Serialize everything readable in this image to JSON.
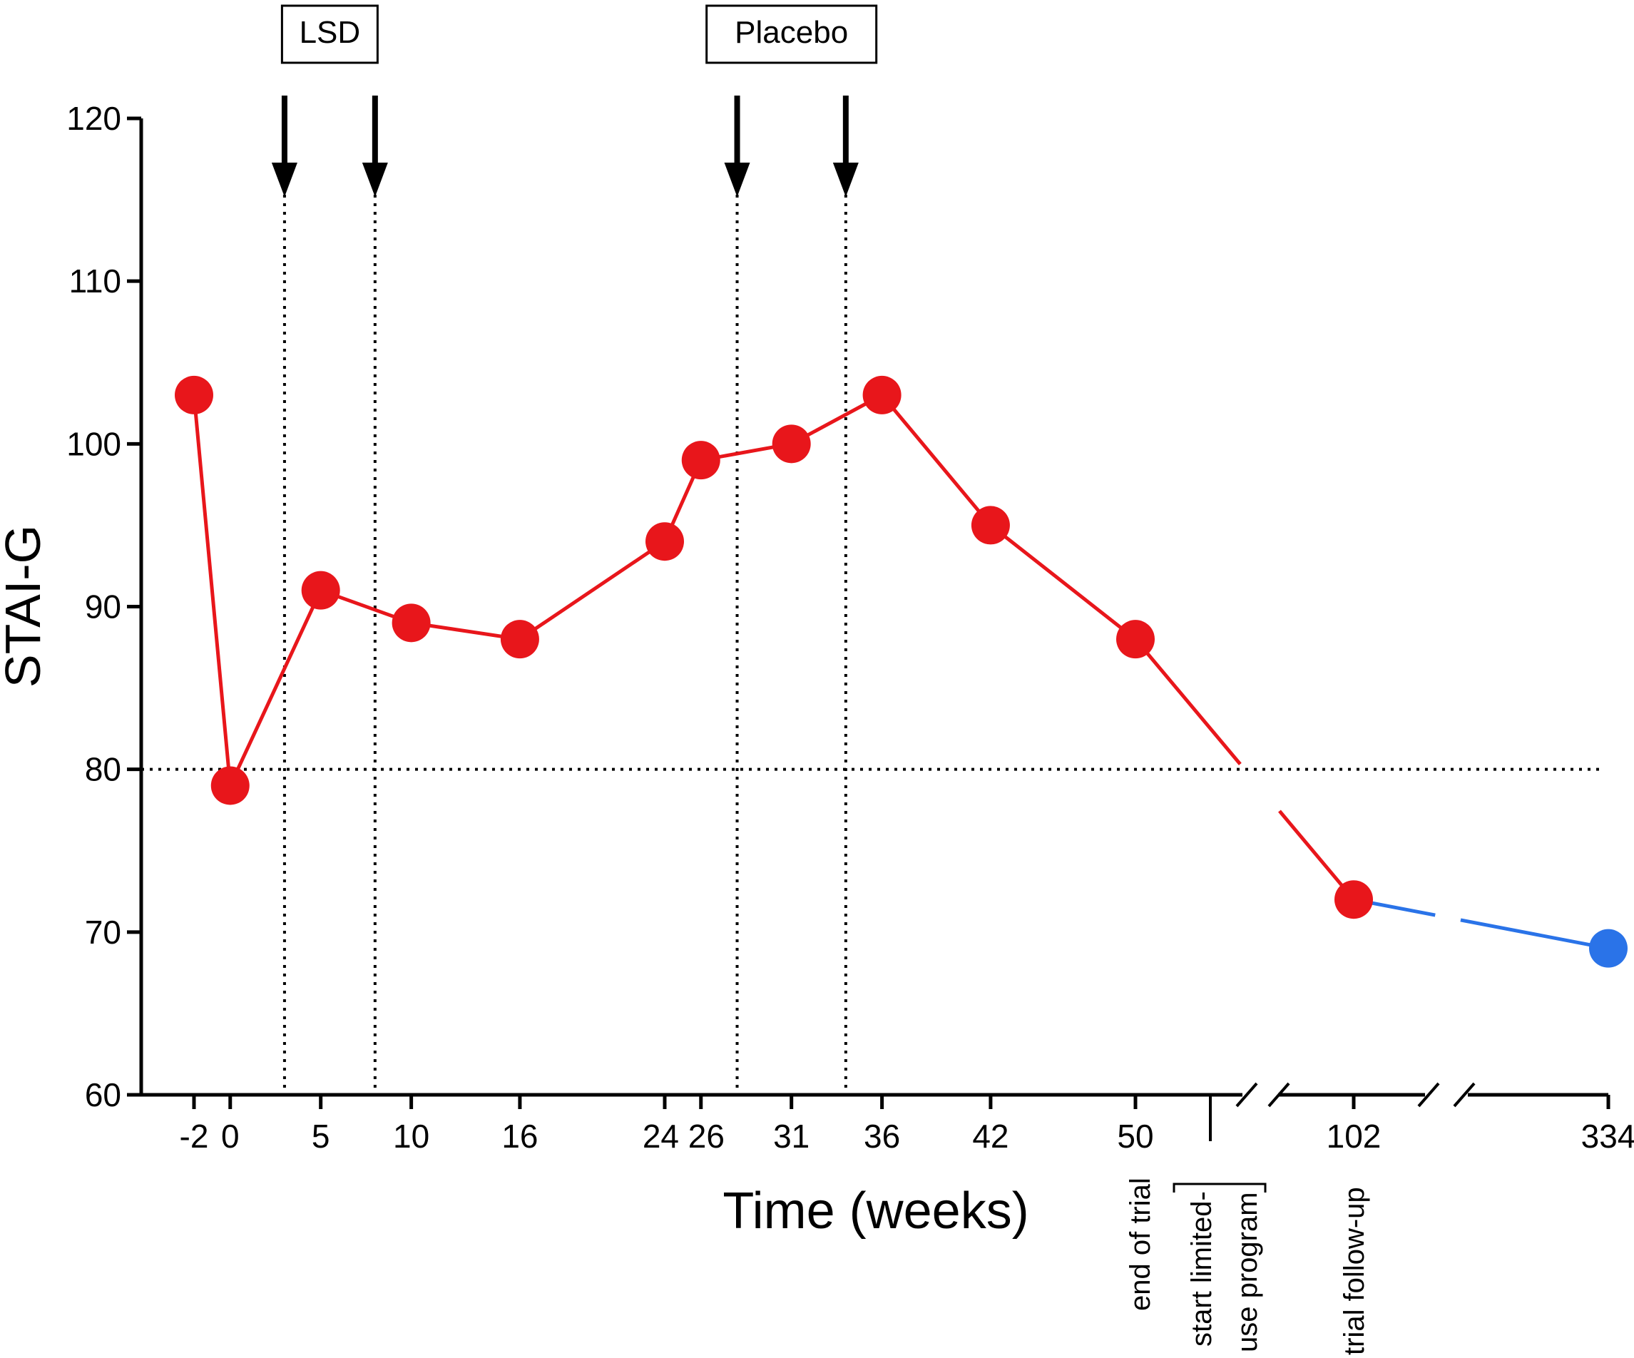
{
  "chart_data": {
    "type": "line",
    "title": "",
    "xlabel": "Time (weeks)",
    "ylabel": "STAI-G",
    "ylim": [
      60,
      120
    ],
    "yticks": [
      60,
      70,
      80,
      90,
      100,
      110,
      120
    ],
    "xticks": [
      "-2",
      "0",
      "5",
      "10",
      "16",
      "24",
      "26",
      "31",
      "36",
      "42",
      "50",
      "102",
      "334"
    ],
    "reference_line_y": 80,
    "series": [
      {
        "name": "trial",
        "color": "#e8161b",
        "x": [
          "-2",
          "0",
          "5",
          "10",
          "16",
          "24",
          "26",
          "31",
          "36",
          "42",
          "50",
          "102"
        ],
        "values": [
          103,
          79,
          91,
          89,
          88,
          94,
          99,
          100,
          103,
          95,
          88,
          72
        ]
      },
      {
        "name": "follow-up",
        "color": "#2a73e8",
        "x": [
          "102",
          "334"
        ],
        "values": [
          72,
          69
        ]
      }
    ],
    "dose_markers": [
      {
        "group": "LSD",
        "weeks": [
          3,
          8
        ]
      },
      {
        "group": "Placebo",
        "weeks": [
          28,
          34
        ]
      }
    ],
    "annotations": {
      "end_of_trial": "end of trial",
      "limited_use_line1": "start limited-",
      "limited_use_line2": "use program",
      "trial_follow_up": "trial follow-up"
    }
  }
}
